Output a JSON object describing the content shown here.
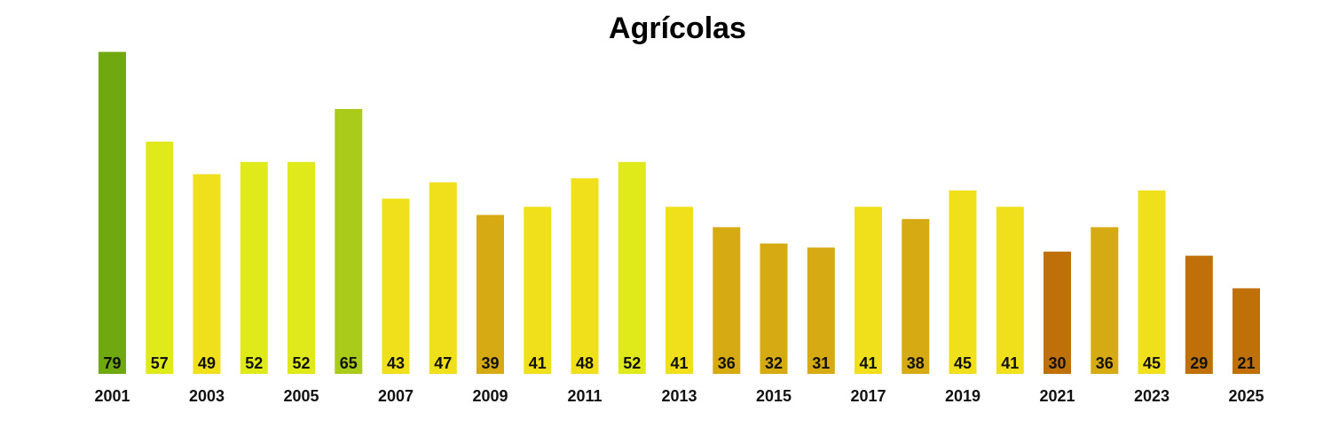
{
  "chart_data": {
    "type": "bar",
    "title": "Agrícolas",
    "xlabel": "",
    "ylabel": "",
    "grid": false,
    "legend": "none",
    "categories": [
      "2001",
      "2002",
      "2003",
      "2004",
      "2005",
      "2006",
      "2007",
      "2008",
      "2009",
      "2010",
      "2011",
      "2012",
      "2013",
      "2014",
      "2015",
      "2016",
      "2017",
      "2018",
      "2019",
      "2020",
      "2021",
      "2022",
      "2023",
      "2024",
      "2025"
    ],
    "x_tick_labels": [
      "2001",
      "2003",
      "2005",
      "2007",
      "2009",
      "2011",
      "2013",
      "2015",
      "2017",
      "2019",
      "2021",
      "2023",
      "2025"
    ],
    "values": [
      79,
      57,
      49,
      52,
      52,
      65,
      43,
      47,
      39,
      41,
      48,
      52,
      41,
      36,
      32,
      31,
      41,
      38,
      45,
      41,
      30,
      36,
      45,
      29,
      21
    ],
    "data_labels": [
      "79",
      "57",
      "49",
      "52",
      "52",
      "65",
      "43",
      "47",
      "39",
      "41",
      "48",
      "52",
      "41",
      "36",
      "32",
      "31",
      "41",
      "38",
      "45",
      "41",
      "30",
      "36",
      "45",
      "29",
      "21"
    ],
    "colors": [
      "#6fa80f",
      "#e0ea1a",
      "#f0e01c",
      "#e0ea1a",
      "#e0ea1a",
      "#aacb19",
      "#f0e01c",
      "#f0e01c",
      "#d6aa12",
      "#f0e01c",
      "#f0e01c",
      "#e0ea1a",
      "#f0e01c",
      "#d6aa12",
      "#d6aa12",
      "#d6aa12",
      "#f0e01c",
      "#d6aa12",
      "#f0e01c",
      "#f0e01c",
      "#c07008",
      "#d6aa12",
      "#f0e01c",
      "#c07008",
      "#c07008"
    ]
  }
}
